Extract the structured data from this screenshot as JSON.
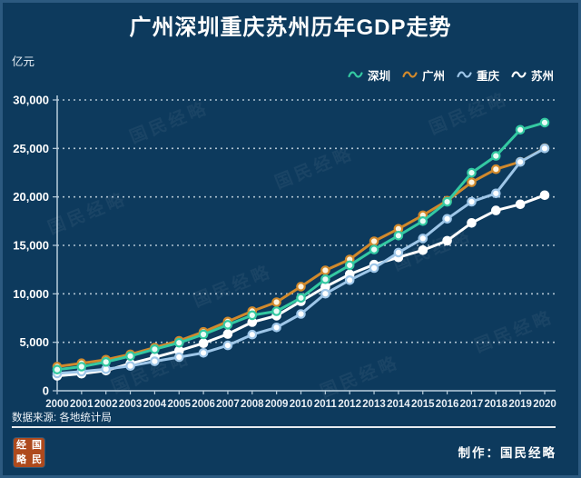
{
  "title": "广州深圳重庆苏州历年GDP走势",
  "unit_label": "亿元",
  "legend": {
    "position": "top-right",
    "items": [
      {
        "label": "深圳",
        "color": "#34c9a2"
      },
      {
        "label": "广州",
        "color": "#d1892c"
      },
      {
        "label": "重庆",
        "color": "#9ec6e8"
      },
      {
        "label": "苏州",
        "color": "#ffffff"
      }
    ]
  },
  "chart_data": {
    "type": "line",
    "title": "广州深圳重庆苏州历年GDP走势",
    "ylabel": "亿元",
    "xlabel": "",
    "x": [
      2000,
      2001,
      2002,
      2003,
      2004,
      2005,
      2006,
      2007,
      2008,
      2009,
      2010,
      2011,
      2012,
      2013,
      2014,
      2015,
      2016,
      2017,
      2018,
      2019,
      2020
    ],
    "ylim": [
      0,
      30000
    ],
    "grid": "horizontal dotted",
    "legend_position": "top-right",
    "axis_color": "#b9cedd",
    "grid_color": "#ccdae5",
    "yticks": [
      {
        "v": 0,
        "label": "0"
      },
      {
        "v": 5000,
        "label": "5,000"
      },
      {
        "v": 10000,
        "label": "10,000"
      },
      {
        "v": 15000,
        "label": "15,000"
      },
      {
        "v": 20000,
        "label": "20,000"
      },
      {
        "v": 25000,
        "label": "25,000"
      },
      {
        "v": 30000,
        "label": "30,000"
      }
    ],
    "series": [
      {
        "id": "suzhou",
        "name": "苏州",
        "color": "#ffffff",
        "marker_fill": "#ffffff",
        "values": [
          1541,
          1760,
          2080,
          2802,
          3450,
          4138,
          4900,
          5850,
          7078,
          7740,
          9229,
          10717,
          12012,
          13016,
          13761,
          14504,
          15475,
          17320,
          18597,
          19236,
          20171
        ]
      },
      {
        "id": "guangzhou",
        "name": "广州",
        "color": "#d1892c",
        "marker_fill": "#fdf4e0",
        "values": [
          2493,
          2842,
          3204,
          3759,
          4451,
          5154,
          6074,
          7140,
          8216,
          9138,
          10748,
          12423,
          13551,
          15420,
          16707,
          18100,
          19611,
          21503,
          22859,
          23629,
          25019
        ]
      },
      {
        "id": "chongqing",
        "name": "重庆",
        "color": "#9ec6e8",
        "marker_fill": "#ffffff",
        "values": [
          1791,
          1977,
          2233,
          2556,
          3035,
          3468,
          3907,
          4676,
          5794,
          6530,
          7926,
          10011,
          11410,
          12657,
          14263,
          15717,
          17741,
          19500,
          20363,
          23606,
          25003
        ]
      },
      {
        "id": "shenzhen",
        "name": "深圳",
        "color": "#34c9a2",
        "marker_fill": "#eafcf6",
        "values": [
          2187,
          2482,
          2970,
          3585,
          4282,
          4951,
          5814,
          6802,
          7787,
          8201,
          9582,
          11502,
          12950,
          14572,
          16002,
          17503,
          19493,
          22490,
          24222,
          26927,
          27670
        ]
      }
    ]
  },
  "watermark": {
    "text": "国民经略"
  },
  "footer": {
    "source": "数据来源: 各地统计局",
    "credit": "制作：国民经略",
    "seal_chars": [
      "经",
      "国",
      "略",
      "民"
    ]
  }
}
